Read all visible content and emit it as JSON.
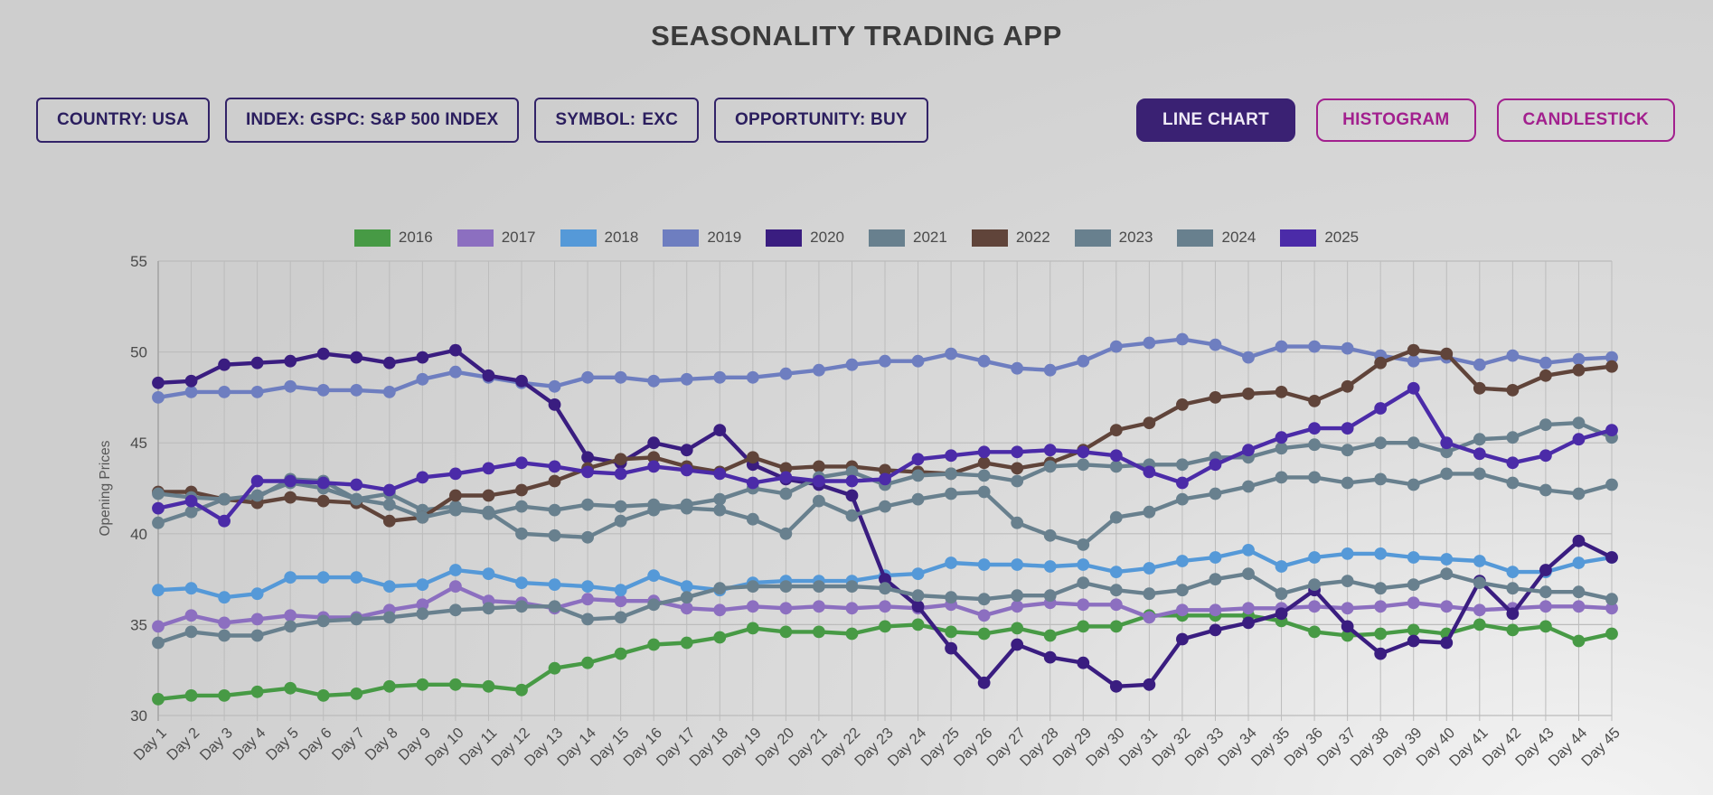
{
  "app": {
    "title": "SEASONALITY TRADING APP"
  },
  "filters": [
    {
      "text": "COUNTRY: USA"
    },
    {
      "text": "INDEX: GSPC: S&P 500 INDEX"
    },
    {
      "text": "SYMBOL:",
      "bold": "EXC"
    },
    {
      "text": "OPPORTUNITY: BUY"
    }
  ],
  "chart_type_buttons": [
    {
      "label": "LINE CHART",
      "active": true
    },
    {
      "label": "HISTOGRAM",
      "active": false
    },
    {
      "label": "CANDLESTICK",
      "active": false
    }
  ],
  "ui_colors": {
    "title_text": "#3b3b3b",
    "chip_border": "#322368",
    "chip_text": "#2b1e5e",
    "active_button_bg": "#3a2173",
    "active_button_text": "#efeaf6",
    "outline_button": "#a2208e",
    "grid_line": "#bcbcbc",
    "tick_text": "#4a4a4a",
    "axis_label_text": "#555555"
  },
  "chart_data": {
    "type": "line",
    "title": "",
    "xlabel": "",
    "ylabel": "Opening Prices",
    "ylim": [
      30,
      55
    ],
    "yticks": [
      30,
      35,
      40,
      45,
      50,
      55
    ],
    "grid": true,
    "legend_position": "top",
    "x": [
      "Day 1",
      "Day 2",
      "Day 3",
      "Day 4",
      "Day 5",
      "Day 6",
      "Day 7",
      "Day 8",
      "Day 9",
      "Day 10",
      "Day 11",
      "Day 12",
      "Day 13",
      "Day 14",
      "Day 15",
      "Day 16",
      "Day 17",
      "Day 18",
      "Day 19",
      "Day 20",
      "Day 21",
      "Day 22",
      "Day 23",
      "Day 24",
      "Day 25",
      "Day 26",
      "Day 27",
      "Day 28",
      "Day 29",
      "Day 30",
      "Day 31",
      "Day 32",
      "Day 33",
      "Day 34",
      "Day 35",
      "Day 36",
      "Day 37",
      "Day 38",
      "Day 39",
      "Day 40",
      "Day 41",
      "Day 42",
      "Day 43",
      "Day 44",
      "Day 45"
    ],
    "series": [
      {
        "name": "2016",
        "color": "#479a45",
        "values": [
          30.9,
          31.1,
          31.1,
          31.3,
          31.5,
          31.1,
          31.2,
          31.6,
          31.7,
          31.7,
          31.6,
          31.4,
          32.6,
          32.9,
          33.4,
          33.9,
          34.0,
          34.3,
          34.8,
          34.6,
          34.6,
          34.5,
          34.9,
          35.0,
          34.6,
          34.5,
          34.8,
          34.4,
          34.9,
          34.9,
          35.5,
          35.5,
          35.5,
          35.5,
          35.2,
          34.6,
          34.4,
          34.5,
          34.7,
          34.5,
          35.0,
          34.7,
          34.9,
          34.1,
          34.5
        ]
      },
      {
        "name": "2017",
        "color": "#8c6fc0",
        "values": [
          34.9,
          35.5,
          35.1,
          35.3,
          35.5,
          35.4,
          35.4,
          35.8,
          36.1,
          37.1,
          36.3,
          36.2,
          35.9,
          36.4,
          36.3,
          36.3,
          35.9,
          35.8,
          36.0,
          35.9,
          36.0,
          35.9,
          36.0,
          35.9,
          36.1,
          35.5,
          36.0,
          36.2,
          36.1,
          36.1,
          35.4,
          35.8,
          35.8,
          35.9,
          35.9,
          36.0,
          35.9,
          36.0,
          36.2,
          36.0,
          35.8,
          35.9,
          36.0,
          36.0,
          35.9
        ]
      },
      {
        "name": "2018",
        "color": "#5599d8",
        "values": [
          36.9,
          37.0,
          36.5,
          36.7,
          37.6,
          37.6,
          37.6,
          37.1,
          37.2,
          38.0,
          37.8,
          37.3,
          37.2,
          37.1,
          36.9,
          37.7,
          37.1,
          36.9,
          37.3,
          37.4,
          37.4,
          37.4,
          37.7,
          37.8,
          38.4,
          38.3,
          38.3,
          38.2,
          38.3,
          37.9,
          38.1,
          38.5,
          38.7,
          39.1,
          38.2,
          38.7,
          38.9,
          38.9,
          38.7,
          38.6,
          38.5,
          37.9,
          37.9,
          38.4,
          38.7
        ]
      },
      {
        "name": "2019",
        "color": "#6e7ec0",
        "values": [
          47.5,
          47.8,
          47.8,
          47.8,
          48.1,
          47.9,
          47.9,
          47.8,
          48.5,
          48.9,
          48.6,
          48.3,
          48.1,
          48.6,
          48.6,
          48.4,
          48.5,
          48.6,
          48.6,
          48.8,
          49.0,
          49.3,
          49.5,
          49.5,
          49.9,
          49.5,
          49.1,
          49.0,
          49.5,
          50.3,
          50.5,
          50.7,
          50.4,
          49.7,
          50.3,
          50.3,
          50.2,
          49.8,
          49.5,
          49.7,
          49.3,
          49.8,
          49.4,
          49.6,
          49.7
        ]
      },
      {
        "name": "2020",
        "color": "#3a1d80",
        "values": [
          48.3,
          48.4,
          49.3,
          49.4,
          49.5,
          49.9,
          49.7,
          49.4,
          49.7,
          50.1,
          48.7,
          48.4,
          47.1,
          44.2,
          43.9,
          45.0,
          44.6,
          45.7,
          43.8,
          43.0,
          42.7,
          42.1,
          37.5,
          36.0,
          33.7,
          31.8,
          33.9,
          33.2,
          32.9,
          31.6,
          31.7,
          34.2,
          34.7,
          35.1,
          35.6,
          36.9,
          34.9,
          33.4,
          34.1,
          34.0,
          37.4,
          35.6,
          38.0,
          39.6,
          38.7
        ]
      },
      {
        "name": "2021",
        "color": "#68808e",
        "values": [
          40.6,
          41.2,
          41.9,
          42.0,
          43.0,
          42.9,
          41.9,
          42.2,
          41.3,
          41.5,
          41.1,
          41.5,
          41.3,
          41.6,
          41.5,
          41.6,
          41.4,
          41.3,
          40.8,
          40.0,
          41.8,
          41.0,
          41.5,
          41.9,
          42.2,
          42.3,
          40.6,
          39.9,
          39.4,
          40.9,
          41.2,
          41.9,
          42.2,
          42.6,
          43.1,
          43.1,
          42.8,
          43.0,
          42.7,
          43.3,
          43.3,
          42.8,
          42.4,
          42.2,
          42.7
        ]
      },
      {
        "name": "2022",
        "color": "#60443a",
        "values": [
          42.3,
          42.3,
          41.9,
          41.7,
          42.0,
          41.8,
          41.7,
          40.7,
          40.9,
          42.1,
          42.1,
          42.4,
          42.9,
          43.6,
          44.1,
          44.2,
          43.7,
          43.4,
          44.2,
          43.6,
          43.7,
          43.7,
          43.5,
          43.4,
          43.3,
          43.9,
          43.6,
          43.9,
          44.6,
          45.7,
          46.1,
          47.1,
          47.5,
          47.7,
          47.8,
          47.3,
          48.1,
          49.4,
          50.1,
          49.9,
          48.0,
          47.9,
          48.7,
          49.0,
          49.2
        ]
      },
      {
        "name": "2023",
        "color": "#68808e",
        "values": [
          42.2,
          42.0,
          41.9,
          42.1,
          42.8,
          42.5,
          41.9,
          41.6,
          40.9,
          41.3,
          41.2,
          40.0,
          39.9,
          39.8,
          40.7,
          41.3,
          41.6,
          41.9,
          42.5,
          42.2,
          43.1,
          43.4,
          42.7,
          43.2,
          43.3,
          43.2,
          42.9,
          43.7,
          43.8,
          43.7,
          43.8,
          43.8,
          44.2,
          44.2,
          44.7,
          44.9,
          44.6,
          45.0,
          45.0,
          44.5,
          45.2,
          45.3,
          46.0,
          46.1,
          45.3
        ]
      },
      {
        "name": "2024",
        "color": "#68808e",
        "values": [
          34.0,
          34.6,
          34.4,
          34.4,
          34.9,
          35.2,
          35.3,
          35.4,
          35.6,
          35.8,
          35.9,
          36.0,
          36.0,
          35.3,
          35.4,
          36.1,
          36.5,
          37.0,
          37.1,
          37.1,
          37.1,
          37.1,
          37.0,
          36.6,
          36.5,
          36.4,
          36.6,
          36.6,
          37.3,
          36.9,
          36.7,
          36.9,
          37.5,
          37.8,
          36.7,
          37.2,
          37.4,
          37.0,
          37.2,
          37.8,
          37.3,
          37.0,
          36.8,
          36.8,
          36.4
        ]
      },
      {
        "name": "2025",
        "color": "#4b2ba8",
        "values": [
          41.4,
          41.8,
          40.7,
          42.9,
          42.9,
          42.8,
          42.7,
          42.4,
          43.1,
          43.3,
          43.6,
          43.9,
          43.7,
          43.4,
          43.3,
          43.7,
          43.5,
          43.3,
          42.8,
          43.1,
          42.9,
          42.9,
          43.0,
          44.1,
          44.3,
          44.5,
          44.5,
          44.6,
          44.5,
          44.3,
          43.4,
          42.8,
          43.8,
          44.6,
          45.3,
          45.8,
          45.8,
          46.9,
          48.0,
          45.0,
          44.4,
          43.9,
          44.3,
          45.2,
          45.7
        ]
      }
    ]
  }
}
